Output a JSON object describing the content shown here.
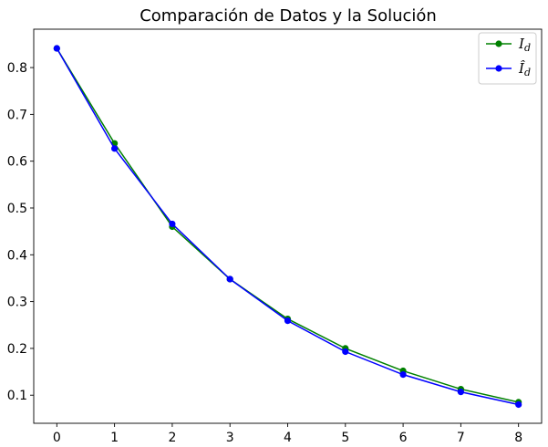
{
  "chart_data": {
    "type": "line",
    "title": "Comparación de Datos y la Solución",
    "xlabel": "",
    "ylabel": "",
    "x": [
      0,
      1,
      2,
      3,
      4,
      5,
      6,
      7,
      8
    ],
    "xticks": [
      "0",
      "1",
      "2",
      "3",
      "4",
      "5",
      "6",
      "7",
      "8"
    ],
    "yticks": [
      "0.1",
      "0.2",
      "0.3",
      "0.4",
      "0.5",
      "0.6",
      "0.7",
      "0.8"
    ],
    "xlim": [
      -0.4,
      8.4
    ],
    "ylim": [
      0.04,
      0.882
    ],
    "grid": false,
    "legend_position": "top-right",
    "series": [
      {
        "name": "I_d",
        "label_main": "I",
        "label_sub": "d",
        "color": "#008000",
        "marker": "circle",
        "values": [
          0.841,
          0.638,
          0.46,
          0.348,
          0.263,
          0.2,
          0.152,
          0.113,
          0.085
        ]
      },
      {
        "name": "Î_d",
        "label_main": "Î",
        "label_sub": "d",
        "color": "#0000ff",
        "marker": "circle",
        "values": [
          0.841,
          0.627,
          0.466,
          0.348,
          0.259,
          0.193,
          0.144,
          0.107,
          0.08
        ]
      }
    ]
  }
}
